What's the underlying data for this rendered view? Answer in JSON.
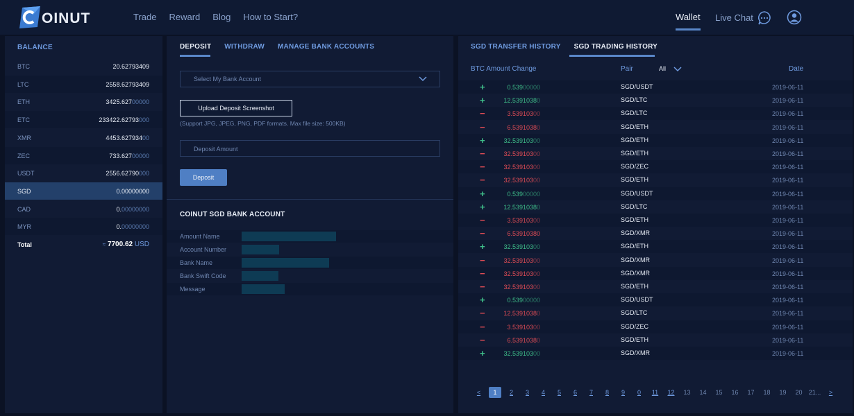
{
  "brand": {
    "name": "OINUT"
  },
  "nav": [
    "Trade",
    "Reward",
    "Blog",
    "How to Start?"
  ],
  "header": {
    "wallet": "Wallet",
    "live_chat": "Live Chat"
  },
  "balance": {
    "title": "BALANCE",
    "rows": [
      {
        "cur": "BTC",
        "main": "20.62793409",
        "dim": ""
      },
      {
        "cur": "LTC",
        "main": "2558.62793409",
        "dim": ""
      },
      {
        "cur": "ETH",
        "main": "3425.627",
        "dim": "00000"
      },
      {
        "cur": "ETC",
        "main": "233422.62793",
        "dim": "000"
      },
      {
        "cur": "XMR",
        "main": "4453.627934",
        "dim": "00"
      },
      {
        "cur": "ZEC",
        "main": "733.627",
        "dim": "00000"
      },
      {
        "cur": "USDT",
        "main": "2556.62790",
        "dim": "000"
      },
      {
        "cur": "SGD",
        "main": "0.00000000",
        "dim": ""
      },
      {
        "cur": "CAD",
        "main": "0.",
        "dim": "00000000"
      },
      {
        "cur": "MYR",
        "main": "0.",
        "dim": "00000000"
      }
    ],
    "total": {
      "label": "Total",
      "approx": "≈",
      "value": "7700.62",
      "unit": "USD"
    }
  },
  "deposit": {
    "tabs": [
      "DEPOSIT",
      "WITHDRAW",
      "MANAGE BANK ACCOUNTS"
    ],
    "select_placeholder": "Select My Bank Account",
    "upload_label": "Upload Deposit Screenshot",
    "support_text": "(Support JPG, JPEG, PNG, PDF formats. Max file size: 500KB)",
    "amount_placeholder": "Deposit Amount",
    "deposit_label": "Deposit",
    "bank_title": "COINUT SGD BANK ACCOUNT",
    "bank_fields": [
      "Amount Name",
      "Account Number",
      "Bank Name",
      "Bank Swift Code",
      "Message"
    ]
  },
  "history": {
    "tabs": [
      "SGD TRANSFER HISTORY",
      "SGD TRADING HISTORY"
    ],
    "columns": {
      "amount": "BTC Amount Change",
      "pair": "Pair",
      "filter": "All",
      "date": "Date"
    },
    "rows": [
      {
        "sign": "+",
        "main": "0.539",
        "dim": "00000",
        "pair": "SGD/USDT",
        "date": "2019-06-11"
      },
      {
        "sign": "+",
        "main": "12.5391038",
        "dim": "0",
        "pair": "SGD/LTC",
        "date": "2019-06-11"
      },
      {
        "sign": "−",
        "main": "3.539103",
        "dim": "00",
        "pair": "SGD/LTC",
        "date": "2019-06-11"
      },
      {
        "sign": "−",
        "main": "6.5391038",
        "dim": "0",
        "pair": "SGD/ETH",
        "date": "2019-06-11"
      },
      {
        "sign": "+",
        "main": "32.539103",
        "dim": "00",
        "pair": "SGD/ETH",
        "date": "2019-06-11"
      },
      {
        "sign": "−",
        "main": "32.539103",
        "dim": "00",
        "pair": "SGD/ETH",
        "date": "2019-06-11"
      },
      {
        "sign": "−",
        "main": "32.539103",
        "dim": "00",
        "pair": "SGD/ZEC",
        "date": "2019-06-11"
      },
      {
        "sign": "−",
        "main": "32.539103",
        "dim": "00",
        "pair": "SGD/ETH",
        "date": "2019-06-11"
      },
      {
        "sign": "+",
        "main": "0.539",
        "dim": "00000",
        "pair": "SGD/USDT",
        "date": "2019-06-11"
      },
      {
        "sign": "+",
        "main": "12.5391038",
        "dim": "0",
        "pair": "SGD/LTC",
        "date": "2019-06-11"
      },
      {
        "sign": "−",
        "main": "3.539103",
        "dim": "00",
        "pair": "SGD/ETH",
        "date": "2019-06-11"
      },
      {
        "sign": "−",
        "main": "6.53910380",
        "dim": "",
        "pair": "SGD/XMR",
        "date": "2019-06-11"
      },
      {
        "sign": "+",
        "main": "32.539103",
        "dim": "00",
        "pair": "SGD/ETH",
        "date": "2019-06-11"
      },
      {
        "sign": "−",
        "main": "32.539103",
        "dim": "00",
        "pair": "SGD/XMR",
        "date": "2019-06-11"
      },
      {
        "sign": "−",
        "main": "32.539103",
        "dim": "00",
        "pair": "SGD/XMR",
        "date": "2019-06-11"
      },
      {
        "sign": "−",
        "main": "32.539103",
        "dim": "00",
        "pair": "SGD/ETH",
        "date": "2019-06-11"
      },
      {
        "sign": "+",
        "main": "0.539",
        "dim": "00000",
        "pair": "SGD/USDT",
        "date": "2019-06-11"
      },
      {
        "sign": "−",
        "main": "12.5391038",
        "dim": "0",
        "pair": "SGD/LTC",
        "date": "2019-06-11"
      },
      {
        "sign": "−",
        "main": "3.539103",
        "dim": "00",
        "pair": "SGD/ZEC",
        "date": "2019-06-11"
      },
      {
        "sign": "−",
        "main": "6.5391038",
        "dim": "0",
        "pair": "SGD/ETH",
        "date": "2019-06-11"
      },
      {
        "sign": "+",
        "main": "32.539103",
        "dim": "00",
        "pair": "SGD/XMR",
        "date": "2019-06-11"
      }
    ],
    "pager": {
      "prev": "<",
      "next": ">",
      "active": "1",
      "pages": [
        "1",
        "2",
        "3",
        "4",
        "5",
        "6",
        "7",
        "8",
        "9",
        "0",
        "11",
        "12",
        "13",
        "14",
        "15",
        "16",
        "17",
        "18",
        "19",
        "20",
        "21..."
      ]
    }
  },
  "colors": {
    "positive": "#3fbf8a",
    "negative": "#e04c55",
    "accent": "#4f7fc4"
  }
}
